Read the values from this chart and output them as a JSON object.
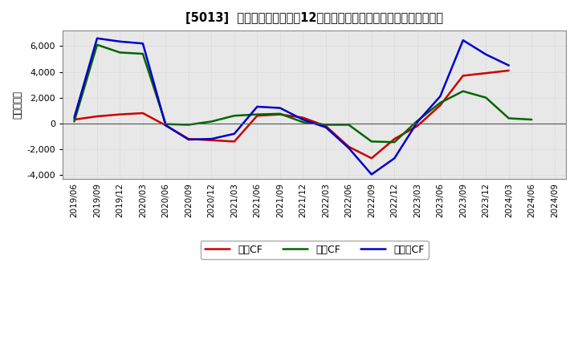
{
  "title": "[5013]  キャッシュフローの12か月移動合計の対前年同期増減額の推移",
  "ylabel": "（百万円）",
  "xlabels": [
    "2019/06",
    "2019/09",
    "2019/12",
    "2020/03",
    "2020/06",
    "2020/09",
    "2020/12",
    "2021/03",
    "2021/06",
    "2021/09",
    "2021/12",
    "2022/03",
    "2022/06",
    "2022/09",
    "2022/12",
    "2023/03",
    "2023/06",
    "2023/09",
    "2023/12",
    "2024/03",
    "2024/06",
    "2024/09"
  ],
  "eigyo": [
    300,
    550,
    700,
    800,
    -150,
    -1200,
    -1300,
    -1400,
    600,
    700,
    450,
    -200,
    -1800,
    -2700,
    -1200,
    -200,
    1400,
    3700,
    3900,
    4100,
    null,
    null
  ],
  "toshi": [
    150,
    6100,
    5500,
    5400,
    -50,
    -100,
    150,
    600,
    700,
    750,
    100,
    -100,
    -100,
    -1400,
    -1450,
    200,
    1600,
    2500,
    2000,
    400,
    300,
    null
  ],
  "free": [
    450,
    6600,
    6350,
    6200,
    -150,
    -1250,
    -1200,
    -800,
    1300,
    1200,
    300,
    -300,
    -1900,
    -3950,
    -2700,
    100,
    2100,
    6450,
    5350,
    4500,
    null,
    null
  ],
  "ylim": [
    -4300,
    7200
  ],
  "yticks": [
    -4000,
    -2000,
    0,
    2000,
    4000,
    6000
  ],
  "color_eigyo": "#cc0000",
  "color_toshi": "#006600",
  "color_free": "#0000cc",
  "plot_bg": "#e8e8e8",
  "fig_bg": "#ffffff",
  "grid_color": "#c8c8c8",
  "legend_labels": [
    "営業CF",
    "投資CF",
    "フリーCF"
  ]
}
